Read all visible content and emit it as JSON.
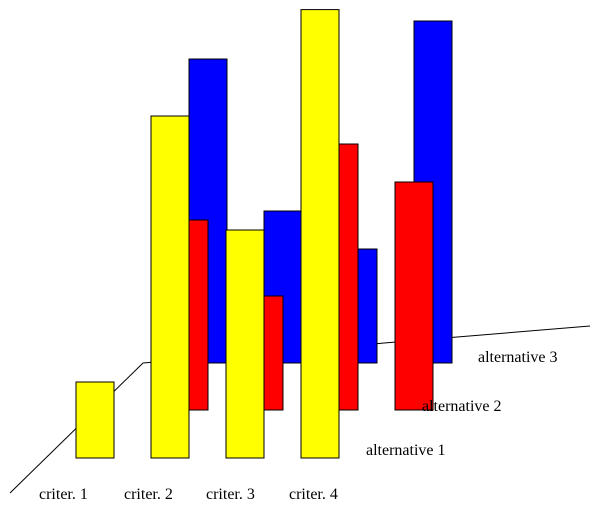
{
  "chart_data": {
    "type": "bar",
    "layout": "3d-grouped",
    "categories": [
      "criter. 1",
      "criter. 2",
      "criter. 3",
      "criter. 4"
    ],
    "series": [
      {
        "name": "alternative 1",
        "color": "#ffff00",
        "values": [
          2.0,
          9.0,
          6.0,
          11.8
        ]
      },
      {
        "name": "alternative 2",
        "color": "#ff0000",
        "values": [
          0.0,
          5.0,
          3.0,
          7.0
        ]
      },
      {
        "name": "alternative 3",
        "color": "#0000ff",
        "values": [
          0.0,
          8.0,
          4.0,
          3.0
        ]
      }
    ],
    "extra_bars": [
      {
        "series": "alternative 2",
        "label": "alternative 2",
        "value": 6.0
      },
      {
        "series": "alternative 3",
        "label": "alternative 3",
        "value": 9.0
      }
    ],
    "title": "",
    "xlabel": "",
    "ylabel": "",
    "grid": false,
    "legend": "none"
  }
}
